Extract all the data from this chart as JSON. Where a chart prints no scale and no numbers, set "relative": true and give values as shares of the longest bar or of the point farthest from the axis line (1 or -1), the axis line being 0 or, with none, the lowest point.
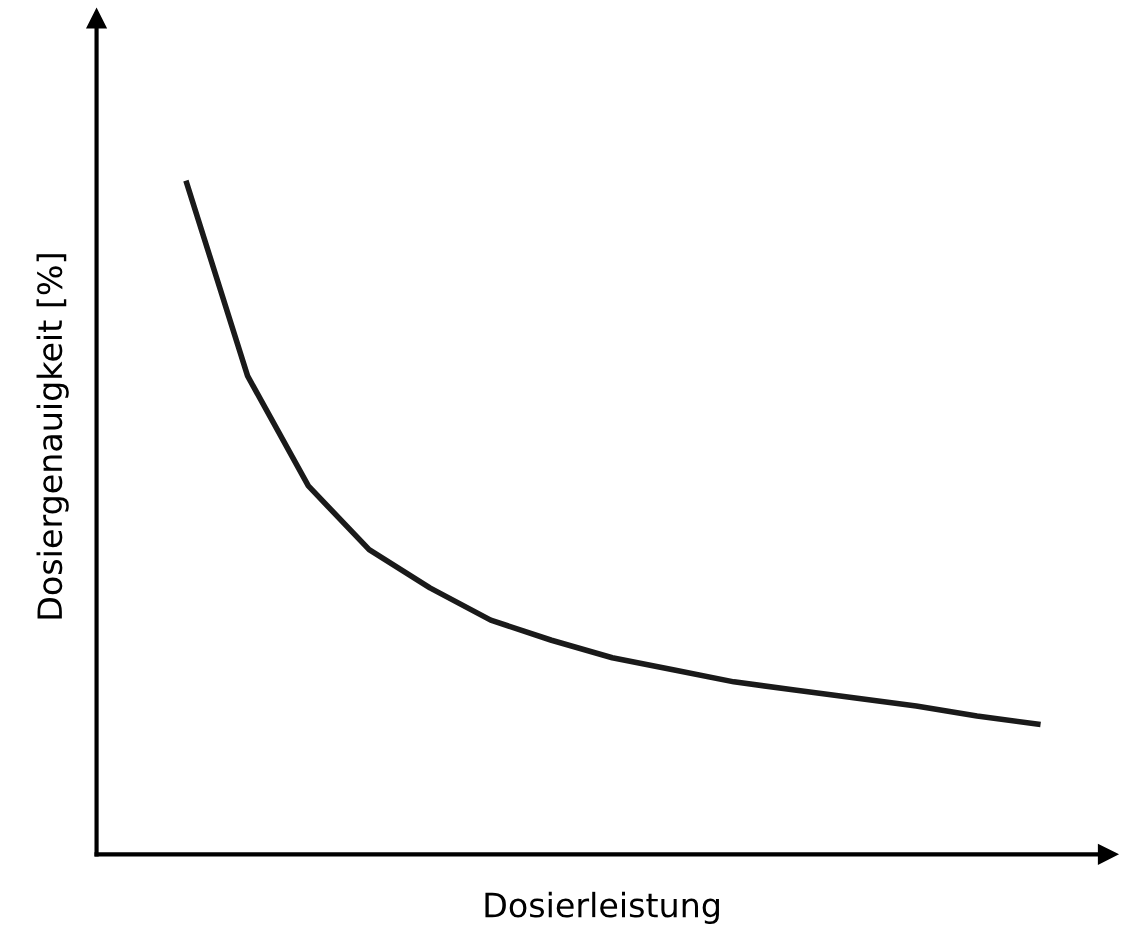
{
  "chart_data": {
    "type": "line",
    "relative": true,
    "xlabel": "Dosierleistung",
    "ylabel": "Dosiergenauigkeit [%]",
    "categories": [
      null,
      null,
      null,
      null,
      null,
      null,
      null,
      null,
      null,
      null,
      null,
      null,
      null,
      null,
      null
    ],
    "series": [
      {
        "color": "#1a1a1a",
        "values": [
          1,
          0.713,
          0.549,
          0.454,
          0.397,
          0.349,
          0.319,
          0.293,
          0.275,
          0.257,
          0.245,
          0.233,
          0.221,
          0.206,
          0.194
        ]
      }
    ],
    "marker": "none",
    "line_style": "solid"
  }
}
